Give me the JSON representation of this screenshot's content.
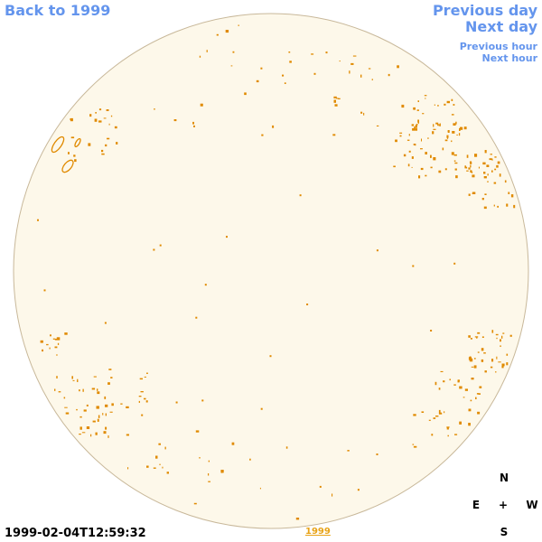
{
  "nav": {
    "back_label": "Back to 1999",
    "prev_day_label": "Previous day",
    "next_day_label": "Next day",
    "prev_hour_label": "Previous hour",
    "next_hour_label": "Next hour"
  },
  "compass": {
    "north": "N",
    "south": "S",
    "east": "E",
    "west": "W",
    "center": "+"
  },
  "footer": {
    "timestamp": "1999-02-04T12:59:32",
    "year_link": "1999"
  },
  "colors": {
    "disk_fill": "#fdf8ea",
    "disk_border": "#c8b89a",
    "contour": "#e08a00",
    "link": "#6495ed"
  }
}
